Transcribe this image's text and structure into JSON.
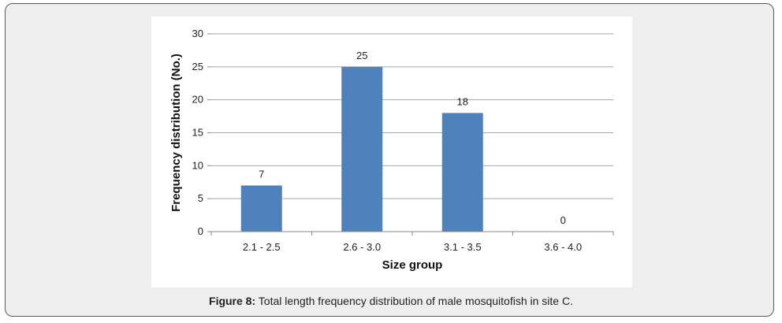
{
  "chart_data": {
    "type": "bar",
    "categories": [
      "2.1 - 2.5",
      "2.6 - 3.0",
      "3.1 - 3.5",
      "3.6 - 4.0"
    ],
    "values": [
      7,
      25,
      18,
      0
    ],
    "data_labels": [
      "7",
      "25",
      "18",
      "0"
    ],
    "xlabel": "Size group",
    "ylabel": "Frequency distribution (No.)",
    "ylim": [
      0,
      30
    ],
    "yticks": [
      0,
      5,
      10,
      15,
      20,
      25,
      30
    ],
    "grid": true,
    "bar_color": "#4f81bd",
    "gridline_color": "#a6a6a6"
  },
  "caption": {
    "prefix": "Figure 8:",
    "text": " Total length frequency distribution of male mosquitofish in site C."
  }
}
